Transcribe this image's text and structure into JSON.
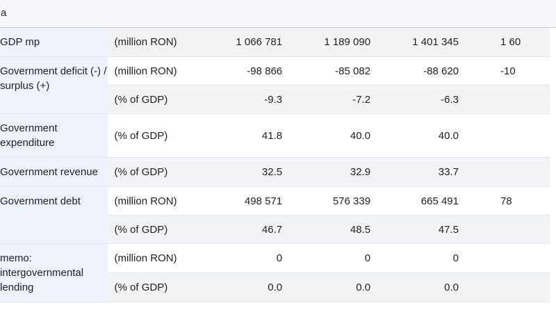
{
  "header": {
    "title": "a"
  },
  "table": {
    "rows": [
      {
        "label": "GDP mp",
        "lines": [
          {
            "unit": "(million RON)",
            "values": [
              "1 066 781",
              "1 189 090",
              "1 401 345",
              "1 60"
            ]
          }
        ]
      },
      {
        "label": "Government deficit (-) / surplus (+)",
        "lines": [
          {
            "unit": "(million RON)",
            "values": [
              "-98 866",
              "-85 082",
              "-88 620",
              "-10"
            ]
          },
          {
            "unit": "(% of GDP)",
            "values": [
              "-9.3",
              "-7.2",
              "-6.3"
            ]
          }
        ]
      },
      {
        "label": "Government expenditure",
        "lines": [
          {
            "unit": "(% of GDP)",
            "values": [
              "41.8",
              "40.0",
              "40.0"
            ]
          }
        ]
      },
      {
        "label": "Government revenue",
        "lines": [
          {
            "unit": "(% of GDP)",
            "values": [
              "32.5",
              "32.9",
              "33.7"
            ]
          }
        ]
      },
      {
        "label": "Government debt",
        "lines": [
          {
            "unit": "(million RON)",
            "values": [
              "498 571",
              "576 339",
              "665 491",
              "78"
            ]
          },
          {
            "unit": "(% of GDP)",
            "values": [
              "46.7",
              "48.5",
              "47.5"
            ]
          }
        ]
      },
      {
        "label": "memo: intergovernmental lending",
        "lines": [
          {
            "unit": "(million RON)",
            "values": [
              "0",
              "0",
              "0"
            ]
          },
          {
            "unit": "(% of GDP)",
            "values": [
              "0.0",
              "0.0",
              "0.0"
            ]
          }
        ]
      }
    ]
  }
}
